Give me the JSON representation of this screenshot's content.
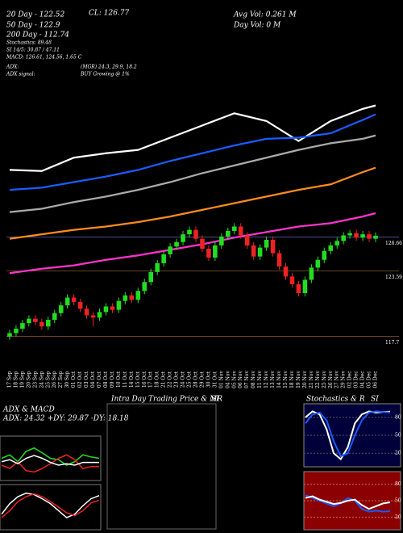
{
  "header": {
    "cl": "CL: 126.77",
    "avg_vol": "Avg Vol: 0.261 M",
    "day_vol": "Day Vol: 0  M",
    "ma20": "20 Day - 122.52",
    "ma50": "50 Day - 122.9",
    "ma200": "200 Day - 112.74",
    "stoch": "Stochastics: 89.48",
    "si": "SI 14/5: 30.87 / 47.11",
    "macd": "MACD: 126.61, 124.56, 1.65 C",
    "adx": "ADX:",
    "adx_values": "(MGR) 24.3, 29.9, 18.2",
    "adx_signal": "ADX  signal:",
    "adx_signal_value": "BUY Growing @ 1%"
  },
  "chart_data": [
    {
      "type": "candlestick",
      "categories": [
        "17 Sep",
        "18 Sep",
        "19 Sep",
        "20 Sep",
        "23 Sep",
        "24 Sep",
        "25 Sep",
        "26 Sep",
        "27 Sep",
        "30 Sep",
        "01 Oct",
        "02 Oct",
        "03 Oct",
        "04 Oct",
        "07 Oct",
        "08 Oct",
        "09 Oct",
        "10 Oct",
        "11 Oct",
        "14 Oct",
        "15 Oct",
        "16 Oct",
        "17 Oct",
        "18 Oct",
        "21 Oct",
        "22 Oct",
        "23 Oct",
        "24 Oct",
        "25 Oct",
        "28 Oct",
        "29 Oct",
        "30 Oct",
        "31 Oct",
        "01 Nov",
        "04 Nov",
        "05 Nov",
        "06 Nov",
        "07 Nov",
        "08 Nov",
        "11 Nov",
        "12 Nov",
        "13 Nov",
        "14 Nov",
        "15 Nov",
        "18 Nov",
        "19 Nov",
        "20 Nov",
        "21 Nov",
        "22 Nov",
        "25 Nov",
        "26 Nov",
        "27 Nov",
        "29 Nov",
        "02 Dec",
        "03 Dec",
        "04 Dec",
        "05 Dec",
        "06 Dec"
      ],
      "open": [
        117.7,
        118.0,
        118.4,
        118.9,
        119.3,
        119.0,
        118.6,
        119.2,
        119.8,
        120.5,
        121.2,
        120.8,
        120.2,
        119.6,
        119.4,
        119.9,
        120.4,
        120.1,
        120.9,
        121.4,
        121.0,
        121.8,
        122.6,
        123.5,
        124.3,
        125.1,
        125.8,
        126.2,
        126.9,
        127.3,
        126.5,
        125.6,
        124.8,
        125.9,
        126.7,
        127.2,
        127.6,
        126.8,
        125.9,
        124.9,
        125.7,
        126.4,
        125.2,
        124.0,
        123.1,
        122.4,
        121.6,
        122.8,
        123.9,
        124.6,
        125.4,
        125.9,
        126.3,
        126.8,
        127.0,
        126.6,
        126.9,
        126.5
      ],
      "high": [
        118.3,
        118.7,
        119.2,
        119.6,
        119.6,
        119.3,
        119.5,
        120.1,
        120.8,
        121.5,
        121.5,
        121.1,
        120.5,
        119.9,
        120.2,
        120.7,
        120.7,
        121.2,
        121.7,
        121.7,
        122.1,
        122.9,
        123.8,
        124.6,
        125.4,
        126.1,
        126.5,
        127.2,
        127.6,
        127.6,
        126.8,
        125.9,
        126.2,
        127.0,
        127.5,
        127.9,
        127.9,
        127.1,
        126.2,
        126.0,
        126.7,
        126.7,
        125.5,
        124.3,
        123.4,
        122.7,
        123.1,
        124.2,
        124.9,
        125.7,
        126.2,
        126.6,
        127.1,
        127.3,
        127.3,
        127.2,
        127.2,
        127.07
      ],
      "low": [
        117.4,
        117.7,
        118.1,
        118.6,
        118.7,
        118.3,
        118.3,
        118.9,
        119.5,
        120.2,
        120.5,
        119.9,
        119.3,
        118.6,
        119.1,
        119.6,
        119.8,
        119.8,
        120.6,
        120.7,
        120.7,
        121.5,
        122.3,
        123.2,
        124.0,
        124.8,
        125.5,
        125.9,
        126.6,
        126.2,
        125.3,
        124.5,
        124.5,
        125.6,
        126.4,
        126.9,
        126.5,
        125.6,
        124.6,
        124.6,
        125.4,
        124.9,
        123.7,
        122.8,
        122.1,
        121.3,
        121.3,
        122.5,
        123.6,
        124.3,
        125.1,
        125.6,
        126.0,
        126.5,
        126.3,
        126.3,
        126.2,
        126.2
      ],
      "close": [
        118.0,
        118.4,
        118.9,
        119.3,
        119.0,
        118.6,
        119.2,
        119.8,
        120.5,
        121.2,
        120.8,
        120.2,
        119.6,
        119.4,
        119.9,
        120.4,
        120.1,
        120.9,
        121.4,
        121.0,
        121.8,
        122.6,
        123.5,
        124.3,
        125.1,
        125.8,
        126.2,
        126.9,
        127.3,
        126.5,
        125.6,
        124.8,
        125.9,
        126.7,
        127.2,
        127.6,
        126.8,
        125.9,
        124.9,
        125.7,
        126.4,
        125.2,
        124.0,
        123.1,
        122.4,
        121.6,
        122.8,
        123.9,
        124.6,
        125.4,
        125.9,
        126.3,
        126.8,
        127.0,
        126.6,
        126.9,
        126.5,
        126.77
      ],
      "up_color": "#22dd22",
      "down_color": "#ee2222",
      "ylim": [
        116,
        148
      ],
      "levels": [
        {
          "value": 126.66,
          "label": "126.66"
        },
        {
          "value": 123.59,
          "label": "123.59"
        },
        {
          "value": 117.7,
          "label": "117.7"
        }
      ],
      "ma_x": [
        "17 Sep",
        "24 Sep",
        "01 Oct",
        "08 Oct",
        "15 Oct",
        "22 Oct",
        "29 Oct",
        "05 Nov",
        "12 Nov",
        "19 Nov",
        "26 Nov",
        "04 Dec",
        "06 Dec"
      ],
      "ma_series": [
        {
          "color": "#ffffff",
          "values": [
            132.7,
            132.6,
            133.8,
            134.2,
            134.5,
            135.6,
            136.7,
            137.8,
            137.1,
            135.3,
            137.1,
            138.2,
            138.5
          ]
        },
        {
          "color": "#1a5cff",
          "values": [
            130.9,
            131.1,
            131.6,
            132.1,
            132.7,
            133.5,
            134.2,
            134.9,
            135.5,
            135.6,
            136.0,
            137.2,
            137.7
          ]
        },
        {
          "color": "#aaaaaa",
          "values": [
            128.9,
            129.2,
            129.8,
            130.3,
            130.9,
            131.6,
            132.4,
            133.1,
            133.8,
            134.5,
            135.1,
            135.5,
            135.8
          ]
        },
        {
          "color": "#ff8c1a",
          "values": [
            126.5,
            126.9,
            127.3,
            127.6,
            128.0,
            128.5,
            129.1,
            129.7,
            130.3,
            130.9,
            131.4,
            132.5,
            132.9
          ]
        },
        {
          "color": "#ff33cc",
          "values": [
            123.4,
            123.8,
            124.1,
            124.6,
            125.0,
            125.5,
            126.0,
            126.6,
            127.1,
            127.6,
            127.9,
            128.5,
            128.8
          ]
        }
      ]
    },
    {
      "type": "line",
      "title": "ADX  & MACD",
      "subtitle": "ADX: 24.32 +DY: 29.87 -DY: 18.18",
      "ylim": [
        0,
        60
      ],
      "series": [
        {
          "color": "#22dd22",
          "values": [
            30,
            35,
            25,
            40,
            45,
            38,
            30,
            28,
            20,
            25,
            35,
            32,
            30
          ]
        },
        {
          "color": "#ee2222",
          "values": [
            20,
            15,
            25,
            12,
            10,
            15,
            22,
            30,
            35,
            28,
            15,
            18,
            18
          ]
        },
        {
          "color": "#ffffff",
          "values": [
            25,
            28,
            22,
            30,
            34,
            30,
            24,
            20,
            22,
            20,
            24,
            24,
            24
          ]
        }
      ],
      "macd_ylim": [
        -3,
        3
      ],
      "macd_series": [
        {
          "color": "#ffffff",
          "values": [
            -1,
            0.5,
            1.5,
            2,
            1.8,
            1.2,
            0.5,
            -0.5,
            -1.5,
            -1,
            0.2,
            1.2,
            1.65
          ]
        },
        {
          "color": "#ee2222",
          "values": [
            -1.5,
            -0.5,
            0.8,
            1.5,
            1.9,
            1.5,
            0.8,
            0,
            -0.8,
            -1.2,
            -0.5,
            0.6,
            1
          ]
        }
      ]
    },
    {
      "type": "empty",
      "title": "Intra Day Trading Price  & MR",
      "subtitle": "SI"
    },
    {
      "type": "stochastic",
      "title": "Stochastics & R",
      "subtitle": "SI",
      "ylim": [
        0,
        100
      ],
      "yticks": [
        20,
        50,
        80
      ],
      "series": [
        {
          "color": "#ffffff",
          "values": [
            80,
            90,
            85,
            60,
            20,
            10,
            30,
            70,
            85,
            90,
            88,
            89,
            89.48
          ]
        },
        {
          "color": "#1a5cff",
          "values": [
            70,
            85,
            88,
            75,
            40,
            15,
            20,
            50,
            75,
            88,
            90,
            89,
            88
          ]
        }
      ],
      "si_ylim": [
        0,
        100
      ],
      "si_yticks": [
        20,
        50,
        80
      ],
      "si_series": [
        {
          "color": "#1a5cff",
          "values": [
            60,
            55,
            50,
            45,
            40,
            45,
            55,
            50,
            35,
            30,
            32,
            30,
            30.87
          ]
        },
        {
          "color": "#ffffff",
          "values": [
            55,
            58,
            52,
            48,
            44,
            46,
            50,
            52,
            42,
            35,
            40,
            45,
            47.11
          ]
        }
      ]
    }
  ]
}
